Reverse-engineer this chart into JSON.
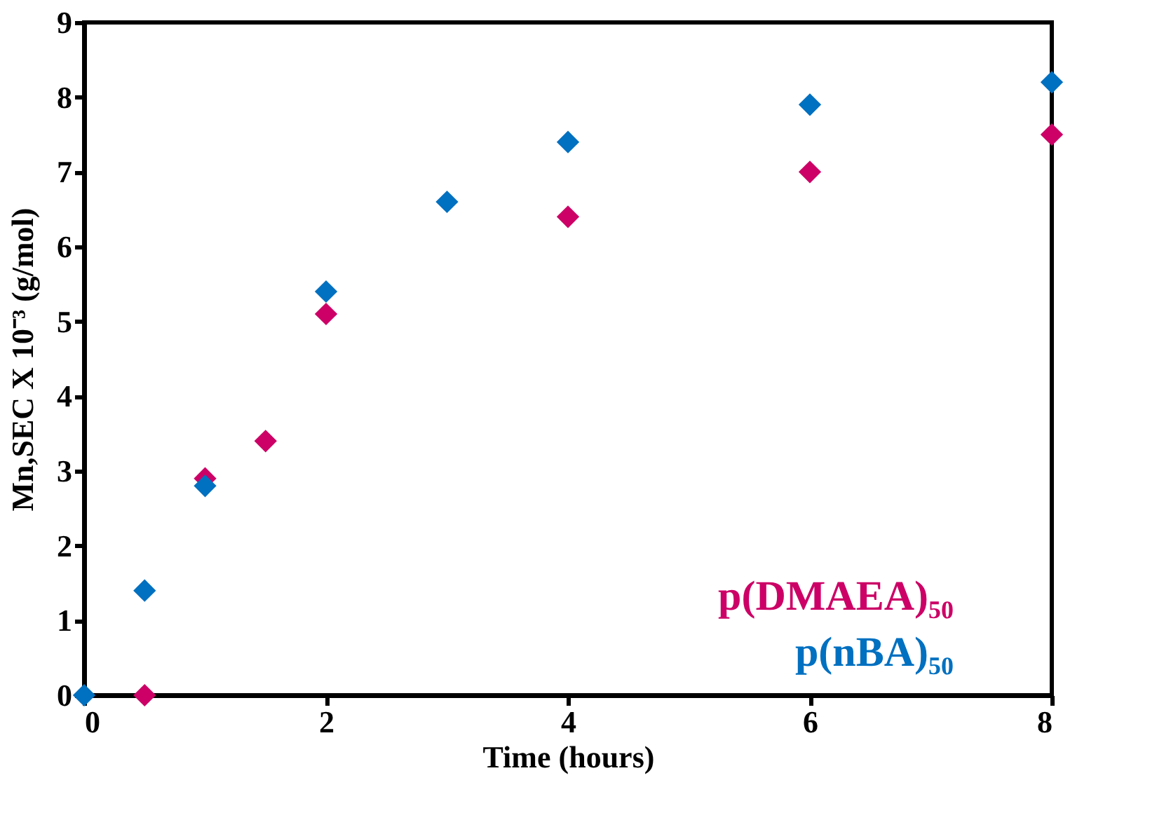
{
  "chart_data": {
    "type": "scatter",
    "xlabel": "Time (hours)",
    "ylabel": "Mn,SEC X 10⁻³ (g/mol)",
    "series": [
      {
        "name": "p(DMAEA)₅₀",
        "color": "#cc0066",
        "x": [
          0.5,
          1,
          1.5,
          2,
          4,
          6,
          8
        ],
        "values": [
          0,
          2.9,
          3.4,
          5.1,
          6.4,
          7.0,
          7.5
        ]
      },
      {
        "name": "p(nBA)₅₀",
        "color": "#0070c0",
        "x": [
          0,
          0.5,
          1,
          2,
          3,
          4,
          6,
          8
        ],
        "values": [
          0,
          1.4,
          2.8,
          5.4,
          6.6,
          7.4,
          7.9,
          8.2
        ]
      }
    ],
    "xlim": [
      0,
      8
    ],
    "xticks": [
      0,
      2,
      4,
      6,
      8
    ],
    "ylim": [
      0,
      9
    ],
    "yticks": [
      0,
      1,
      2,
      3,
      4,
      5,
      6,
      7,
      8,
      9
    ],
    "grid": false,
    "legend": "bottom right",
    "marker": "diamond"
  }
}
